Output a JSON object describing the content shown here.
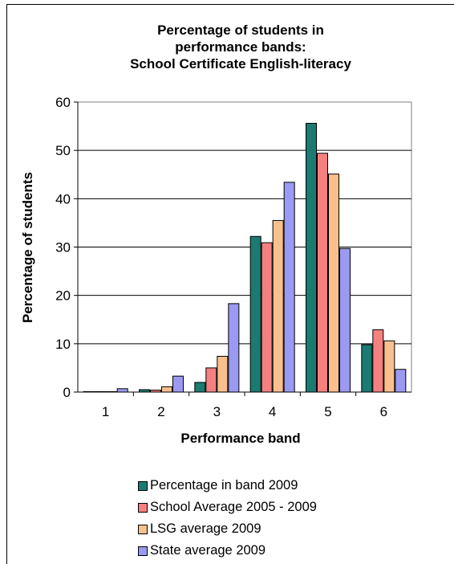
{
  "chart_data": {
    "type": "bar",
    "title_lines": [
      "Percentage of students in",
      "performance bands:",
      "School Certificate English-literacy"
    ],
    "xlabel": "Performance band",
    "ylabel": "Percentage of students",
    "categories": [
      "1",
      "2",
      "3",
      "4",
      "5",
      "6"
    ],
    "ylim": [
      0,
      60
    ],
    "yticks": [
      "0",
      "10",
      "20",
      "30",
      "40",
      "50",
      "60"
    ],
    "grid": true,
    "legend_position": "bottom",
    "series": [
      {
        "name": "Percentage in band 2009",
        "color": "#1b7a72",
        "values": [
          0.1,
          0.5,
          2.0,
          32.2,
          55.6,
          9.8
        ]
      },
      {
        "name": "School Average 2005 - 2009",
        "color": "#f48080",
        "values": [
          0.1,
          0.4,
          5.0,
          30.9,
          49.4,
          12.9
        ]
      },
      {
        "name": "LSG average 2009",
        "color": "#f9c08e",
        "values": [
          0.1,
          1.1,
          7.4,
          35.5,
          45.1,
          10.6
        ]
      },
      {
        "name": "State average 2009",
        "color": "#9a9af2",
        "values": [
          0.7,
          3.3,
          18.3,
          43.4,
          29.7,
          4.7
        ]
      }
    ]
  }
}
